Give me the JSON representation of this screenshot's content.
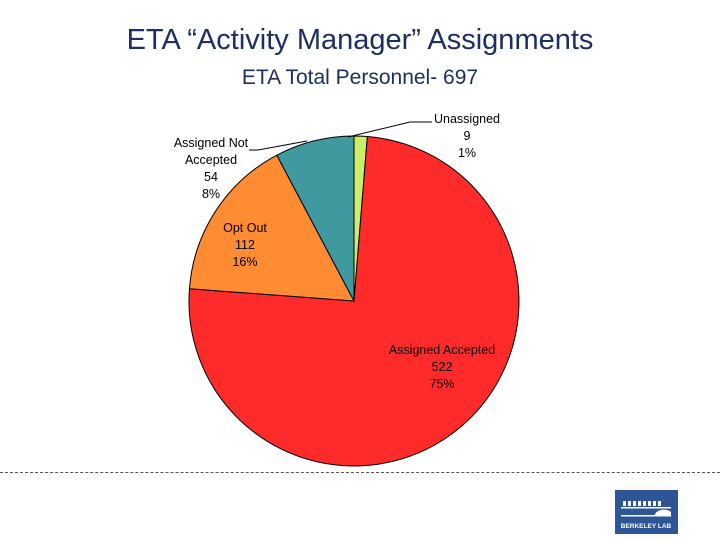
{
  "header": {
    "title": "ETA “Activity Manager” Assignments",
    "subtitle": "ETA Total Personnel- 697"
  },
  "chart_data": {
    "type": "pie",
    "title": "ETA Total Personnel- 697",
    "total": 697,
    "slices": [
      {
        "label": "Unassigned",
        "value": 9,
        "percent": "1%",
        "color": "#ccee66"
      },
      {
        "label": "Assigned Accepted",
        "value": 522,
        "percent": "75%",
        "color": "#ff2a2a"
      },
      {
        "label": "Opt Out",
        "value": 112,
        "percent": "16%",
        "color": "#ff8c33"
      },
      {
        "label": "Assigned Not Accepted",
        "value": 54,
        "percent": "8%",
        "color": "#3f999f"
      }
    ]
  },
  "logo": {
    "text": "BERKELEY LAB"
  }
}
